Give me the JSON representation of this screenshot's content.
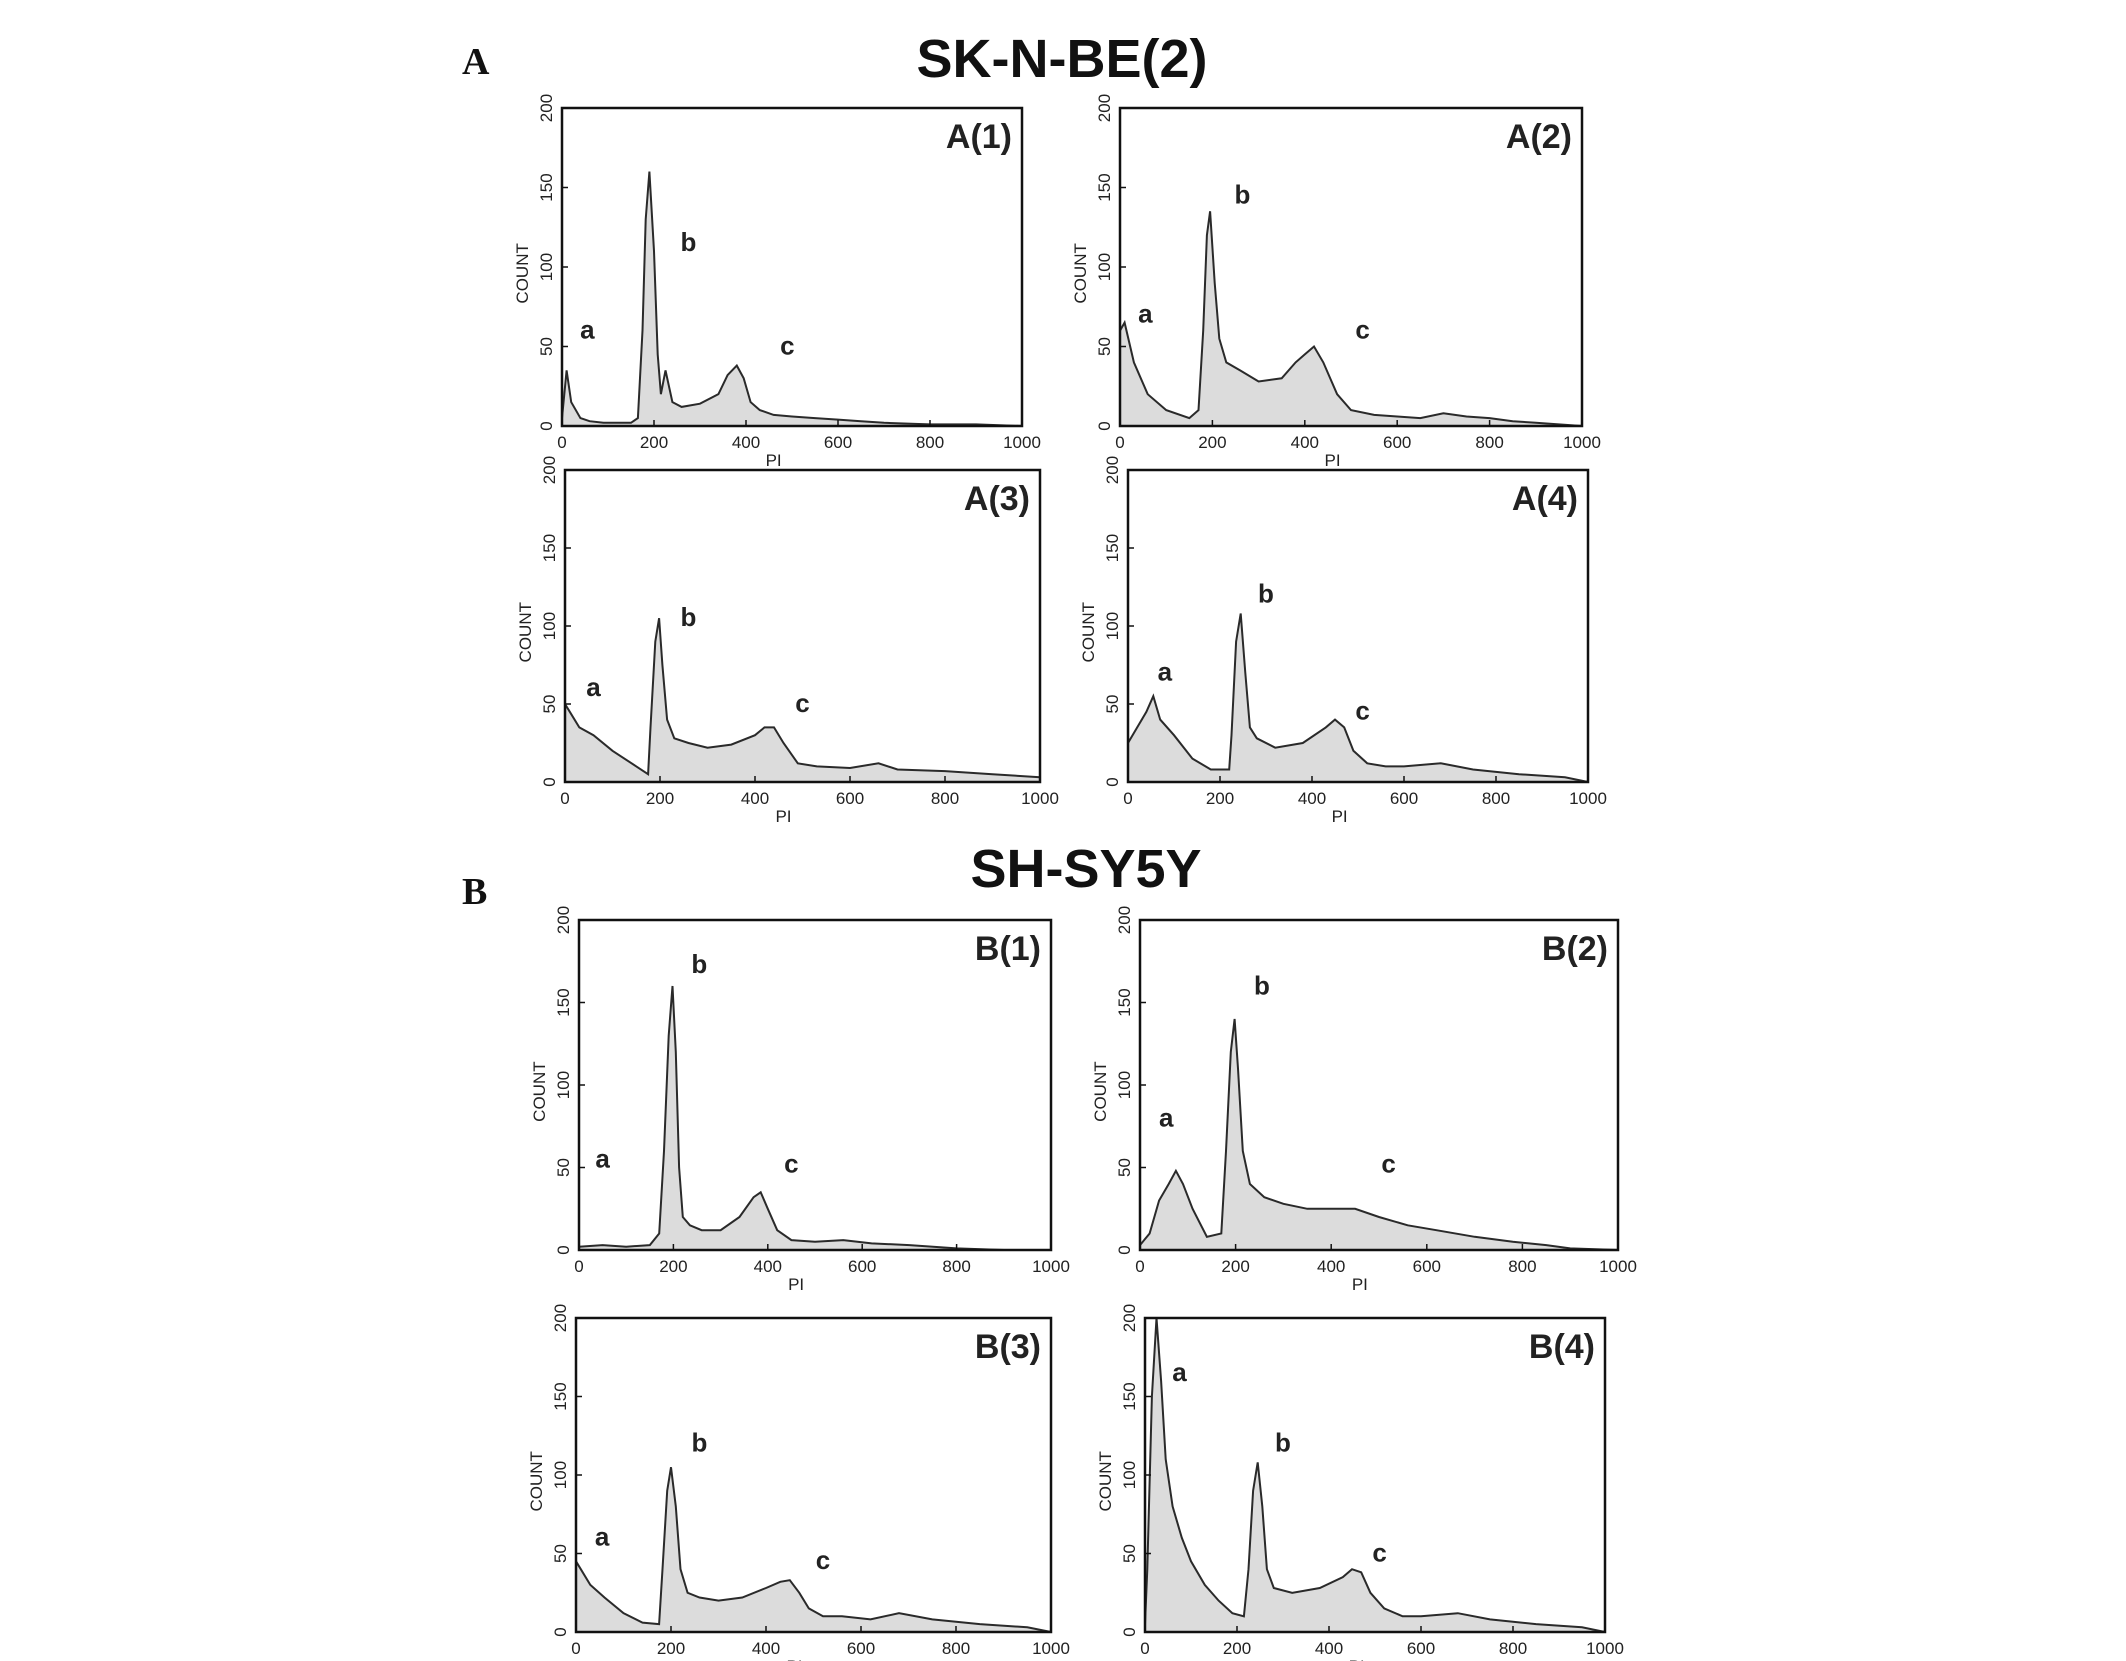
{
  "figure": {
    "panel_a_letter": "A",
    "panel_b_letter": "B",
    "section_a_title": "SK-N-BE(2)",
    "section_b_title": "SH-SY5Y"
  },
  "colors": {
    "line": "#2a2a2a",
    "fill": "#dcdcdc",
    "frame": "#111111"
  },
  "chart_data": [
    {
      "type": "area",
      "panel_label": "A(1)",
      "xlabel": "PI",
      "ylabel": "COUNT",
      "xlim": [
        0,
        1000
      ],
      "ylim": [
        0,
        200
      ],
      "xticks": [
        0,
        200,
        400,
        600,
        800,
        1000
      ],
      "yticks": [
        0,
        50,
        100,
        150,
        200
      ],
      "annotations": [
        {
          "text": "a",
          "x": 55,
          "y": 55
        },
        {
          "text": "b",
          "x": 275,
          "y": 110
        },
        {
          "text": "c",
          "x": 490,
          "y": 45
        }
      ],
      "x": [
        0,
        10,
        20,
        40,
        60,
        90,
        120,
        150,
        165,
        175,
        182,
        190,
        200,
        208,
        215,
        225,
        240,
        260,
        300,
        340,
        360,
        380,
        395,
        410,
        430,
        460,
        500,
        550,
        600,
        650,
        700,
        800,
        900,
        1000
      ],
      "y": [
        5,
        35,
        15,
        5,
        3,
        2,
        2,
        2,
        5,
        60,
        130,
        160,
        110,
        45,
        20,
        35,
        15,
        12,
        14,
        20,
        32,
        38,
        30,
        15,
        10,
        7,
        6,
        5,
        4,
        3,
        2,
        1,
        1,
        0
      ]
    },
    {
      "type": "area",
      "panel_label": "A(2)",
      "xlabel": "PI",
      "ylabel": "COUNT",
      "xlim": [
        0,
        1000
      ],
      "ylim": [
        0,
        200
      ],
      "xticks": [
        0,
        200,
        400,
        600,
        800,
        1000
      ],
      "yticks": [
        0,
        50,
        100,
        150,
        200
      ],
      "annotations": [
        {
          "text": "a",
          "x": 55,
          "y": 65
        },
        {
          "text": "b",
          "x": 265,
          "y": 140
        },
        {
          "text": "c",
          "x": 525,
          "y": 55
        }
      ],
      "x": [
        0,
        10,
        30,
        60,
        100,
        150,
        170,
        180,
        188,
        195,
        205,
        215,
        230,
        260,
        300,
        350,
        380,
        400,
        420,
        440,
        470,
        500,
        550,
        600,
        650,
        700,
        750,
        800,
        850,
        900,
        1000
      ],
      "y": [
        60,
        65,
        40,
        20,
        10,
        5,
        10,
        60,
        120,
        135,
        90,
        55,
        40,
        35,
        28,
        30,
        40,
        45,
        50,
        40,
        20,
        10,
        7,
        6,
        5,
        8,
        6,
        5,
        3,
        2,
        0
      ]
    },
    {
      "type": "area",
      "panel_label": "A(3)",
      "xlabel": "PI",
      "ylabel": "COUNT",
      "xlim": [
        0,
        1000
      ],
      "ylim": [
        0,
        200
      ],
      "xticks": [
        0,
        200,
        400,
        600,
        800,
        1000
      ],
      "yticks": [
        0,
        50,
        100,
        150,
        200
      ],
      "annotations": [
        {
          "text": "a",
          "x": 60,
          "y": 55
        },
        {
          "text": "b",
          "x": 260,
          "y": 100
        },
        {
          "text": "c",
          "x": 500,
          "y": 45
        }
      ],
      "x": [
        0,
        10,
        30,
        60,
        100,
        150,
        175,
        180,
        190,
        198,
        205,
        215,
        230,
        260,
        300,
        350,
        400,
        420,
        440,
        460,
        490,
        530,
        600,
        660,
        700,
        800,
        900,
        1000
      ],
      "y": [
        50,
        45,
        35,
        30,
        20,
        10,
        5,
        35,
        90,
        105,
        75,
        40,
        28,
        25,
        22,
        24,
        30,
        35,
        35,
        25,
        12,
        10,
        9,
        12,
        8,
        7,
        5,
        3
      ]
    },
    {
      "type": "area",
      "panel_label": "A(4)",
      "xlabel": "PI",
      "ylabel": "COUNT",
      "xlim": [
        0,
        1000
      ],
      "ylim": [
        0,
        200
      ],
      "xticks": [
        0,
        200,
        400,
        600,
        800,
        1000
      ],
      "yticks": [
        0,
        50,
        100,
        150,
        200
      ],
      "annotations": [
        {
          "text": "a",
          "x": 80,
          "y": 65
        },
        {
          "text": "b",
          "x": 300,
          "y": 115
        },
        {
          "text": "c",
          "x": 510,
          "y": 40
        }
      ],
      "x": [
        0,
        20,
        40,
        55,
        70,
        100,
        140,
        180,
        220,
        225,
        235,
        245,
        255,
        265,
        280,
        320,
        380,
        430,
        450,
        470,
        490,
        520,
        560,
        600,
        680,
        750,
        850,
        950,
        1000
      ],
      "y": [
        25,
        35,
        45,
        55,
        40,
        30,
        15,
        8,
        8,
        30,
        90,
        108,
        70,
        35,
        28,
        22,
        25,
        35,
        40,
        35,
        20,
        12,
        10,
        10,
        12,
        8,
        5,
        3,
        0
      ]
    },
    {
      "type": "area",
      "panel_label": "B(1)",
      "xlabel": "PI",
      "ylabel": "COUNT",
      "xlim": [
        0,
        1000
      ],
      "ylim": [
        0,
        200
      ],
      "xticks": [
        0,
        200,
        400,
        600,
        800,
        1000
      ],
      "yticks": [
        0,
        50,
        100,
        150,
        200
      ],
      "annotations": [
        {
          "text": "a",
          "x": 50,
          "y": 50
        },
        {
          "text": "b",
          "x": 255,
          "y": 168
        },
        {
          "text": "c",
          "x": 450,
          "y": 47
        }
      ],
      "x": [
        0,
        50,
        100,
        150,
        170,
        180,
        190,
        198,
        205,
        212,
        220,
        235,
        260,
        300,
        340,
        370,
        385,
        400,
        420,
        450,
        500,
        560,
        620,
        700,
        800,
        900,
        1000
      ],
      "y": [
        2,
        3,
        2,
        3,
        10,
        60,
        130,
        160,
        120,
        50,
        20,
        15,
        12,
        12,
        20,
        32,
        35,
        25,
        12,
        6,
        5,
        6,
        4,
        3,
        1,
        0,
        0
      ]
    },
    {
      "type": "area",
      "panel_label": "B(2)",
      "xlabel": "PI",
      "ylabel": "COUNT",
      "xlim": [
        0,
        1000
      ],
      "ylim": [
        0,
        200
      ],
      "xticks": [
        0,
        200,
        400,
        600,
        800,
        1000
      ],
      "yticks": [
        0,
        50,
        100,
        150,
        200
      ],
      "annotations": [
        {
          "text": "a",
          "x": 55,
          "y": 75
        },
        {
          "text": "b",
          "x": 255,
          "y": 155
        },
        {
          "text": "c",
          "x": 520,
          "y": 47
        }
      ],
      "x": [
        0,
        20,
        40,
        60,
        75,
        90,
        110,
        140,
        170,
        180,
        190,
        198,
        205,
        215,
        230,
        260,
        300,
        350,
        400,
        450,
        500,
        560,
        620,
        700,
        780,
        850,
        900,
        1000
      ],
      "y": [
        3,
        10,
        30,
        40,
        48,
        40,
        25,
        8,
        10,
        60,
        120,
        140,
        110,
        60,
        40,
        32,
        28,
        25,
        25,
        25,
        20,
        15,
        12,
        8,
        5,
        3,
        1,
        0
      ]
    },
    {
      "type": "area",
      "panel_label": "B(3)",
      "xlabel": "PI",
      "ylabel": "COUNT",
      "xlim": [
        0,
        1000
      ],
      "ylim": [
        0,
        200
      ],
      "xticks": [
        0,
        200,
        400,
        600,
        800,
        1000
      ],
      "yticks": [
        0,
        50,
        100,
        150,
        200
      ],
      "annotations": [
        {
          "text": "a",
          "x": 55,
          "y": 55
        },
        {
          "text": "b",
          "x": 260,
          "y": 115
        },
        {
          "text": "c",
          "x": 520,
          "y": 40
        }
      ],
      "x": [
        0,
        10,
        30,
        60,
        100,
        140,
        175,
        182,
        192,
        200,
        210,
        220,
        235,
        260,
        300,
        350,
        400,
        430,
        450,
        470,
        490,
        520,
        560,
        620,
        680,
        750,
        850,
        950,
        1000
      ],
      "y": [
        45,
        40,
        30,
        22,
        12,
        6,
        5,
        40,
        90,
        105,
        80,
        40,
        25,
        22,
        20,
        22,
        28,
        32,
        33,
        25,
        15,
        10,
        10,
        8,
        12,
        8,
        5,
        3,
        0
      ]
    },
    {
      "type": "area",
      "panel_label": "B(4)",
      "xlabel": "PI",
      "ylabel": "COUNT",
      "xlim": [
        0,
        1000
      ],
      "ylim": [
        0,
        200
      ],
      "xticks": [
        0,
        200,
        400,
        600,
        800,
        1000
      ],
      "yticks": [
        0,
        50,
        100,
        150,
        200
      ],
      "annotations": [
        {
          "text": "a",
          "x": 75,
          "y": 160
        },
        {
          "text": "b",
          "x": 300,
          "y": 115
        },
        {
          "text": "c",
          "x": 510,
          "y": 45
        }
      ],
      "x": [
        0,
        5,
        15,
        25,
        35,
        45,
        60,
        80,
        100,
        130,
        160,
        190,
        215,
        225,
        235,
        245,
        255,
        265,
        280,
        320,
        380,
        430,
        450,
        470,
        490,
        520,
        560,
        600,
        680,
        750,
        850,
        950,
        1000
      ],
      "y": [
        5,
        40,
        150,
        200,
        160,
        110,
        80,
        60,
        45,
        30,
        20,
        12,
        10,
        40,
        90,
        108,
        80,
        40,
        28,
        25,
        28,
        35,
        40,
        38,
        25,
        15,
        10,
        10,
        12,
        8,
        5,
        3,
        0
      ]
    }
  ]
}
